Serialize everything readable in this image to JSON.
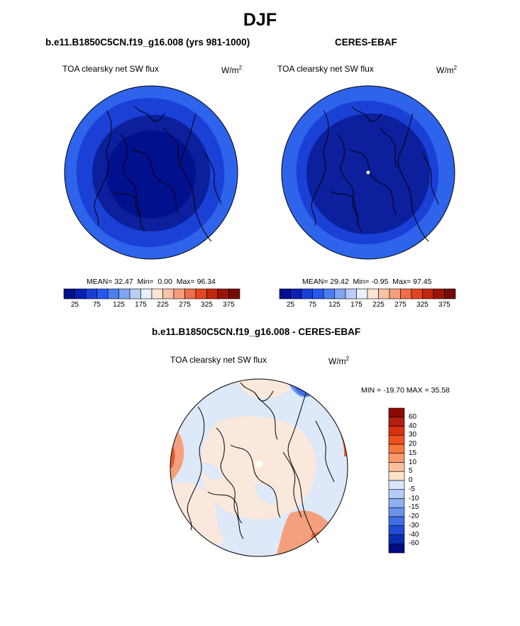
{
  "figure": {
    "title": "DJF"
  },
  "panels": {
    "model": {
      "title": "b.e11.B1850C5CN.f19_g16.008 (yrs 981-1000)",
      "variable": "TOA clearsky net SW flux",
      "units": "W/m",
      "units_sup": "2",
      "stats": {
        "mean_label": "MEAN=",
        "mean": "32.47",
        "min_label": "Min=",
        "min": "0.00",
        "max_label": "Max=",
        "max": "96.34"
      }
    },
    "obs": {
      "title": "CERES-EBAF",
      "variable": "TOA clearsky net SW flux",
      "units": "W/m",
      "units_sup": "2",
      "stats": {
        "mean_label": "MEAN=",
        "mean": "29.42",
        "min_label": "Min=",
        "min": "-0.95",
        "max_label": "Max=",
        "max": "97.45"
      }
    },
    "diff": {
      "title": "b.e11.B1850C5CN.f19_g16.008 - CERES-EBAF",
      "variable": "TOA clearsky net SW flux",
      "units": "W/m",
      "units_sup": "2",
      "stats_text": "MIN = -19.70 MAX =  35.58"
    }
  },
  "colorbar_main": {
    "colors": [
      "#000f8c",
      "#0a1fb4",
      "#1a3fd8",
      "#2659f0",
      "#4a7ef0",
      "#7fa4f4",
      "#b8cdf8",
      "#e8f0fc",
      "#fde4d4",
      "#f9c2a6",
      "#f59e7c",
      "#ef6e48",
      "#e2461e",
      "#c2270f",
      "#9a1408",
      "#760805"
    ],
    "tick_labels": [
      "25",
      "75",
      "125",
      "175",
      "225",
      "275",
      "325",
      "375"
    ]
  },
  "colorbar_diff": {
    "colors_top_to_bottom": [
      "#8c0a05",
      "#b41e0e",
      "#d8320f",
      "#f0501e",
      "#f5763f",
      "#f89a6c",
      "#fbbe9c",
      "#fde2cc",
      "#d8e6fa",
      "#b4ccf6",
      "#8eb0f0",
      "#6a92ea",
      "#3e6ee4",
      "#1f4cd6",
      "#0c2cb0",
      "#000c82"
    ],
    "tick_labels": [
      "60",
      "40",
      "30",
      "20",
      "15",
      "10",
      "5",
      "0",
      "-5",
      "-10",
      "-15",
      "-20",
      "-30",
      "-40",
      "-60"
    ]
  },
  "colors": {
    "model_outer": "#2e63ec",
    "model_mid": "#1a40d6",
    "model_inner": "#0c1f9c",
    "model_core": "#000f8c",
    "diff_bg": "#fbe8dc",
    "diff_blue": "#dde8f9",
    "diff_red": "#f0703c"
  }
}
